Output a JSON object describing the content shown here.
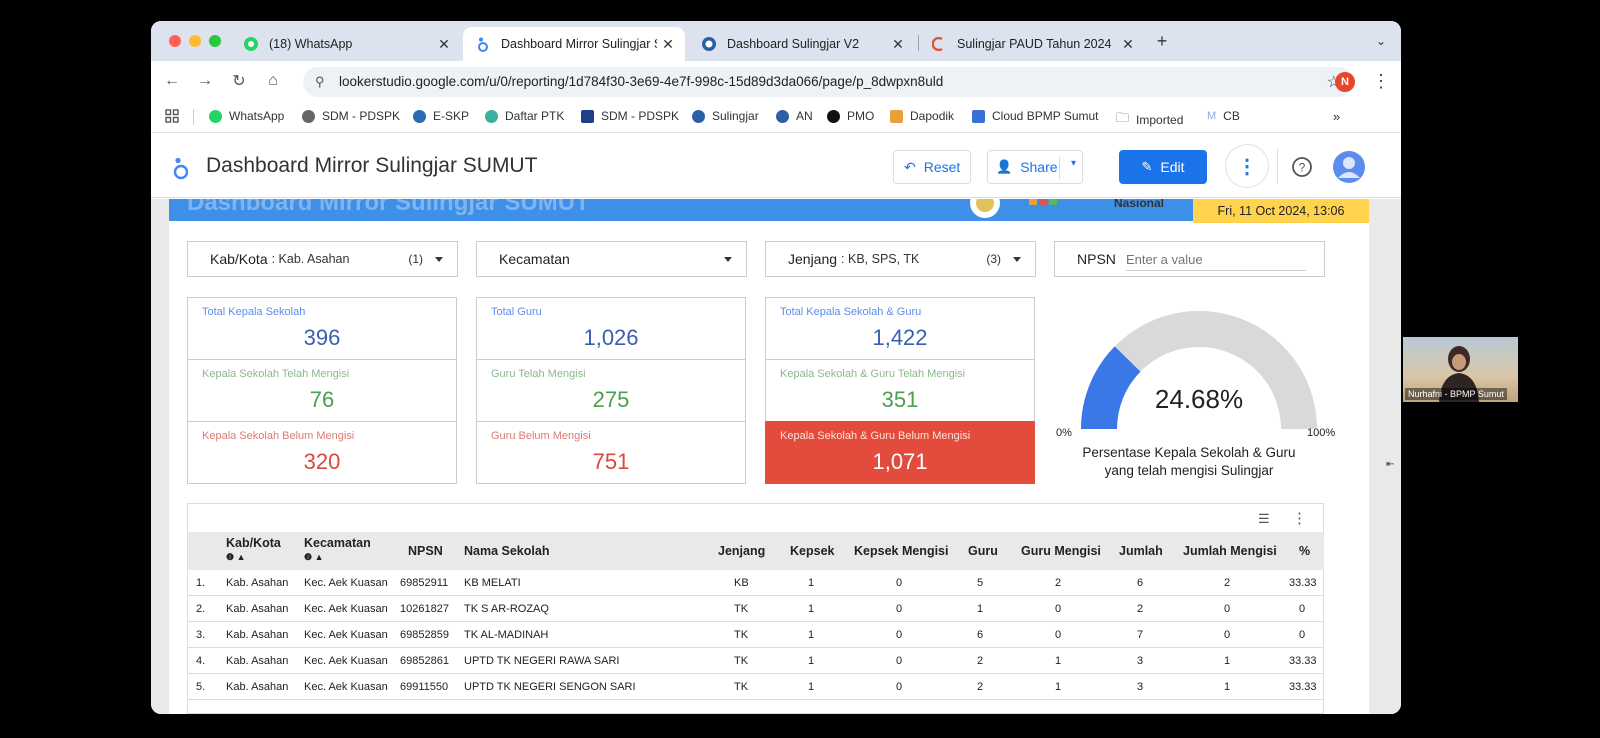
{
  "browser": {
    "tabs": [
      {
        "title": "(18) WhatsApp",
        "icon": "whatsapp-icon"
      },
      {
        "title": "Dashboard Mirror Sulingjar SUMUT",
        "icon": "looker-studio-icon"
      },
      {
        "title": "Dashboard Sulingjar V2",
        "icon": "globe-icon"
      },
      {
        "title": "Sulingjar PAUD Tahun 2024",
        "icon": "app-icon"
      }
    ],
    "url": "lookerstudio.google.com/u/0/reporting/1d784f30-3e69-4e7f-998c-15d89d3da066/page/p_8dwpxn8uld",
    "profile_initial": "N",
    "bookmarks": [
      "WhatsApp",
      "SDM - PDSPK",
      "E-SKP",
      "Daftar PTK",
      "SDM - PDSPK",
      "Sulingjar",
      "AN",
      "PMO",
      "Dapodik",
      "Cloud BPMP Sumut",
      "Imported",
      "CB"
    ]
  },
  "app": {
    "title": "Dashboard Mirror Sulingjar SUMUT",
    "reset_label": "Reset",
    "share_label": "Share",
    "edit_label": "Edit"
  },
  "report": {
    "banner_title": "Dashboard Mirror Sulingjar SUMUT",
    "nasional_label": "Nasional",
    "date": "Fri, 11 Oct 2024, 13:06",
    "filters": {
      "kabkota": {
        "label": "Kab/Kota",
        "value": ": Kab. Asahan",
        "count": "(1)"
      },
      "kecamatan": {
        "label": "Kecamatan"
      },
      "jenjang": {
        "label": "Jenjang",
        "value": ": KB, SPS, TK",
        "count": "(3)"
      },
      "npsn": {
        "label": "NPSN",
        "placeholder": "Enter a value"
      }
    },
    "cards": {
      "total_kepsek": {
        "label": "Total Kepala Sekolah",
        "value": "396"
      },
      "kepsek_mengisi": {
        "label": "Kepala Sekolah Telah Mengisi",
        "value": "76"
      },
      "kepsek_belum": {
        "label": "Kepala Sekolah Belum Mengisi",
        "value": "320"
      },
      "total_guru": {
        "label": "Total Guru",
        "value": "1,026"
      },
      "guru_mengisi": {
        "label": "Guru Telah Mengisi",
        "value": "275"
      },
      "guru_belum": {
        "label": "Guru Belum Mengisi",
        "value": "751"
      },
      "total_all": {
        "label": "Total Kepala Sekolah & Guru",
        "value": "1,422"
      },
      "all_mengisi": {
        "label": "Kepala Sekolah & Guru Telah Mengisi",
        "value": "351"
      },
      "all_belum": {
        "label": "Kepala Sekolah & Guru Belum Mengisi",
        "value": "1,071"
      }
    },
    "gauge": {
      "value_label": "24.68%",
      "fraction": 0.2468,
      "min_label": "0%",
      "max_label": "100%",
      "caption_line1": "Persentase Kepala Sekolah & Guru",
      "caption_line2": "yang telah mengisi Sulingjar",
      "fill_color": "#3b78e7",
      "track_color": "#d9d9d9"
    },
    "table": {
      "columns": [
        "Kab/Kota",
        "Kecamatan",
        "NPSN",
        "Nama Sekolah",
        "Jenjang",
        "Kepsek",
        "Kepsek Mengisi",
        "Guru",
        "Guru Mengisi",
        "Jumlah",
        "Jumlah Mengisi",
        "%"
      ],
      "rows": [
        [
          "1.",
          "Kab. Asahan",
          "Kec. Aek Kuasan",
          "69852911",
          "KB MELATI",
          "KB",
          "1",
          "0",
          "5",
          "2",
          "6",
          "2",
          "33.33"
        ],
        [
          "2.",
          "Kab. Asahan",
          "Kec. Aek Kuasan",
          "10261827",
          "TK S AR-ROZAQ",
          "TK",
          "1",
          "0",
          "1",
          "0",
          "2",
          "0",
          "0"
        ],
        [
          "3.",
          "Kab. Asahan",
          "Kec. Aek Kuasan",
          "69852859",
          "TK AL-MADINAH",
          "TK",
          "1",
          "0",
          "6",
          "0",
          "7",
          "0",
          "0"
        ],
        [
          "4.",
          "Kab. Asahan",
          "Kec. Aek Kuasan",
          "69852861",
          "UPTD TK NEGERI RAWA SARI",
          "TK",
          "1",
          "0",
          "2",
          "1",
          "3",
          "1",
          "33.33"
        ],
        [
          "5.",
          "Kab. Asahan",
          "Kec. Aek Kuasan",
          "69911550",
          "UPTD TK NEGERI SENGON SARI",
          "TK",
          "1",
          "0",
          "2",
          "1",
          "3",
          "1",
          "33.33"
        ]
      ]
    }
  },
  "webcam": {
    "name": "Nurhafni - BPMP Sumut"
  }
}
